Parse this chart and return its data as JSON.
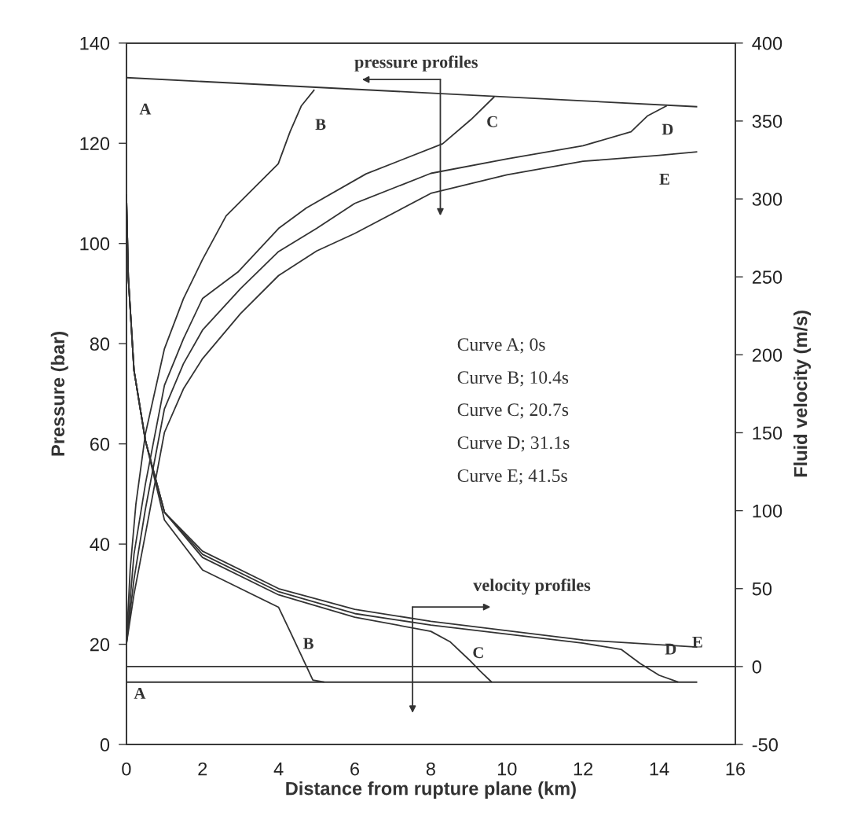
{
  "chart_data": {
    "type": "line",
    "xlabel": "Distance from rupture plane (km)",
    "ylabel": "Pressure (bar)",
    "y2label": "Fluid velocity (m/s)",
    "xlim": [
      0,
      16
    ],
    "xticks": [
      0,
      2,
      4,
      6,
      8,
      10,
      12,
      14,
      16
    ],
    "ylim": [
      0,
      140
    ],
    "yticks": [
      0,
      20,
      40,
      60,
      80,
      100,
      120,
      140
    ],
    "y2lim": [
      -50,
      400
    ],
    "y2ticks": [
      -50,
      0,
      50,
      100,
      150,
      200,
      250,
      300,
      350,
      400
    ],
    "grid": false,
    "legend": false,
    "line_style": "solid",
    "ref_lines": [
      {
        "axis": "y2",
        "value": 0,
        "color": "#333333"
      }
    ],
    "series": [
      {
        "color": "#333333",
        "x": [
          0,
          15
        ],
        "values": [
          133.1,
          127.3
        ]
      },
      {
        "color": "#333333",
        "x": [
          0,
          0.1,
          0.25,
          0.5,
          1,
          1.5,
          2,
          2.62,
          3.25,
          3.99,
          4.3,
          4.6,
          4.94
        ],
        "values": [
          20,
          35,
          48,
          62,
          79,
          89,
          96.8,
          105.5,
          110.3,
          115.9,
          122.3,
          127.5,
          130.7
        ]
      },
      {
        "color": "#333333",
        "x": [
          0,
          0.2,
          0.5,
          1,
          1.5,
          2,
          2.93,
          4,
          4.73,
          6.3,
          8.31,
          9.05,
          9.67
        ],
        "values": [
          20,
          38,
          52,
          71.7,
          81,
          89,
          94.3,
          103,
          107.1,
          113.9,
          119.9,
          124.7,
          129.3
        ]
      },
      {
        "color": "#333333",
        "x": [
          0,
          0.2,
          0.5,
          1,
          1.5,
          2,
          3,
          4,
          5,
          6,
          8,
          10,
          12,
          13.26,
          13.7,
          14.2
        ],
        "values": [
          20,
          33,
          47,
          67,
          76,
          82.7,
          91,
          98.4,
          103,
          108,
          114,
          116.9,
          119.5,
          122.3,
          125.5,
          127.5
        ]
      },
      {
        "color": "#333333",
        "x": [
          0,
          0.2,
          0.5,
          1,
          1.5,
          2,
          3,
          4,
          5,
          6,
          8,
          10,
          12,
          14,
          15
        ],
        "values": [
          20,
          30,
          42,
          62.3,
          71,
          77,
          86,
          93.6,
          98.5,
          102,
          110,
          113.7,
          116.4,
          117.6,
          118.3
        ]
      },
      {
        "axis": "y2",
        "color": "#333333",
        "x": [
          0,
          15
        ],
        "values": [
          -10,
          -10
        ]
      },
      {
        "axis": "y2",
        "color": "#333333",
        "x": [
          0,
          0.05,
          0.2,
          0.5,
          1,
          2,
          3,
          4,
          4.3,
          4.6,
          4.9,
          5.2
        ],
        "values": [
          303,
          250,
          190,
          145,
          94,
          62,
          50,
          38,
          22.6,
          7,
          -8.7,
          -10
        ]
      },
      {
        "axis": "y2",
        "color": "#333333",
        "x": [
          0,
          0.05,
          0.2,
          0.5,
          1,
          2,
          4,
          6,
          8,
          8.5,
          9,
          9.3,
          9.6
        ],
        "values": [
          303,
          250,
          190,
          145,
          99,
          70,
          46,
          31.7,
          22.6,
          16,
          4.5,
          -3,
          -10
        ]
      },
      {
        "axis": "y2",
        "color": "#333333",
        "x": [
          0,
          0.05,
          0.2,
          0.5,
          1,
          2,
          4,
          6,
          8,
          12,
          13,
          13.5,
          14,
          14.5
        ],
        "values": [
          303,
          250,
          190,
          145,
          99,
          72,
          48,
          34,
          26.6,
          15,
          11,
          2,
          -5.6,
          -10
        ]
      },
      {
        "axis": "y2",
        "color": "#333333",
        "x": [
          0,
          0.05,
          0.2,
          0.5,
          1,
          2,
          4,
          6,
          8,
          12,
          15
        ],
        "values": [
          303,
          250,
          190,
          145,
          99,
          74,
          50,
          36.7,
          29,
          17,
          12.5
        ]
      }
    ],
    "annotations": [
      "pressure profiles",
      "velocity profiles",
      "Curve A; 0s",
      "Curve B; 10.4s",
      "Curve C; 20.7s",
      "Curve D; 31.1s",
      "Curve E; 41.5s",
      "A",
      "B",
      "C",
      "D",
      "E",
      "A",
      "B",
      "C",
      "D",
      "E"
    ]
  }
}
